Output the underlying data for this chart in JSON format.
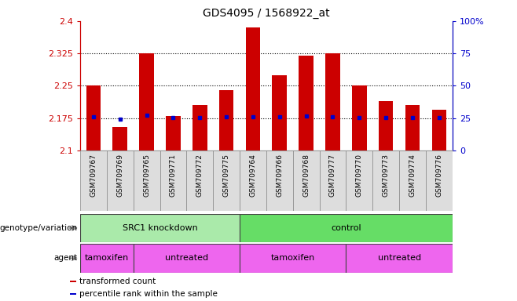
{
  "title": "GDS4095 / 1568922_at",
  "samples": [
    "GSM709767",
    "GSM709769",
    "GSM709765",
    "GSM709771",
    "GSM709772",
    "GSM709775",
    "GSM709764",
    "GSM709766",
    "GSM709768",
    "GSM709777",
    "GSM709770",
    "GSM709773",
    "GSM709774",
    "GSM709776"
  ],
  "bar_values": [
    2.25,
    2.155,
    2.325,
    2.18,
    2.205,
    2.24,
    2.385,
    2.275,
    2.32,
    2.325,
    2.25,
    2.215,
    2.205,
    2.195
  ],
  "percentile_values": [
    2.178,
    2.172,
    2.182,
    2.177,
    2.176,
    2.178,
    2.179,
    2.178,
    2.18,
    2.179,
    2.177,
    2.176,
    2.176,
    2.177
  ],
  "bar_color": "#cc0000",
  "percentile_color": "#0000cc",
  "ylim_left": [
    2.1,
    2.4
  ],
  "ylim_right": [
    0,
    100
  ],
  "yticks_left": [
    2.1,
    2.175,
    2.25,
    2.325,
    2.4
  ],
  "ytick_labels_left": [
    "2.1",
    "2.175",
    "2.25",
    "2.325",
    "2.4"
  ],
  "yticks_right": [
    0,
    25,
    50,
    75,
    100
  ],
  "ytick_labels_right": [
    "0",
    "25",
    "50",
    "75",
    "100%"
  ],
  "hlines": [
    2.175,
    2.25,
    2.325
  ],
  "genotype_groups": [
    {
      "label": "SRC1 knockdown",
      "start": 0,
      "end": 6,
      "color": "#aaeaaa"
    },
    {
      "label": "control",
      "start": 6,
      "end": 14,
      "color": "#66dd66"
    }
  ],
  "agent_groups": [
    {
      "label": "tamoxifen",
      "start": 0,
      "end": 2,
      "color": "#ee66ee"
    },
    {
      "label": "untreated",
      "start": 2,
      "end": 6,
      "color": "#ee66ee"
    },
    {
      "label": "tamoxifen",
      "start": 6,
      "end": 10,
      "color": "#ee66ee"
    },
    {
      "label": "untreated",
      "start": 10,
      "end": 14,
      "color": "#ee66ee"
    }
  ],
  "legend_items": [
    {
      "label": "transformed count",
      "color": "#cc0000"
    },
    {
      "label": "percentile rank within the sample",
      "color": "#0000cc"
    }
  ],
  "left_axis_color": "#cc0000",
  "right_axis_color": "#0000cc",
  "bg_color": "#ffffff",
  "bar_width": 0.55,
  "genotype_label": "genotype/variation",
  "agent_label": "agent",
  "xtick_bg": "#dddddd",
  "xtick_border": "#888888"
}
